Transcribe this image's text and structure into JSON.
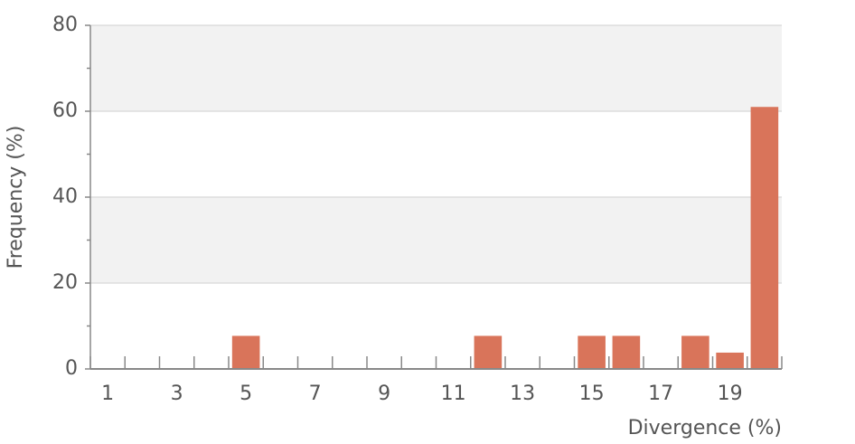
{
  "chart_data": {
    "type": "bar",
    "x_label": "Divergence (%)",
    "y_label": "Frequency (%)",
    "categories": [
      "1",
      null,
      "3",
      null,
      "5",
      null,
      "7",
      null,
      "9",
      null,
      "11",
      null,
      "13",
      null,
      "15",
      null,
      "17",
      null,
      "19",
      null
    ],
    "values": [
      0,
      0,
      0,
      0,
      7.7,
      0,
      0,
      0,
      0,
      0,
      0,
      7.7,
      0,
      0,
      7.7,
      7.7,
      0,
      7.7,
      3.8,
      61
    ],
    "color": "#d9745a",
    "ylim": [
      0,
      80
    ],
    "yticks": [
      0,
      20,
      40,
      60,
      80
    ],
    "yticks_minor": [
      10,
      30,
      50,
      70
    ],
    "grid": true
  }
}
